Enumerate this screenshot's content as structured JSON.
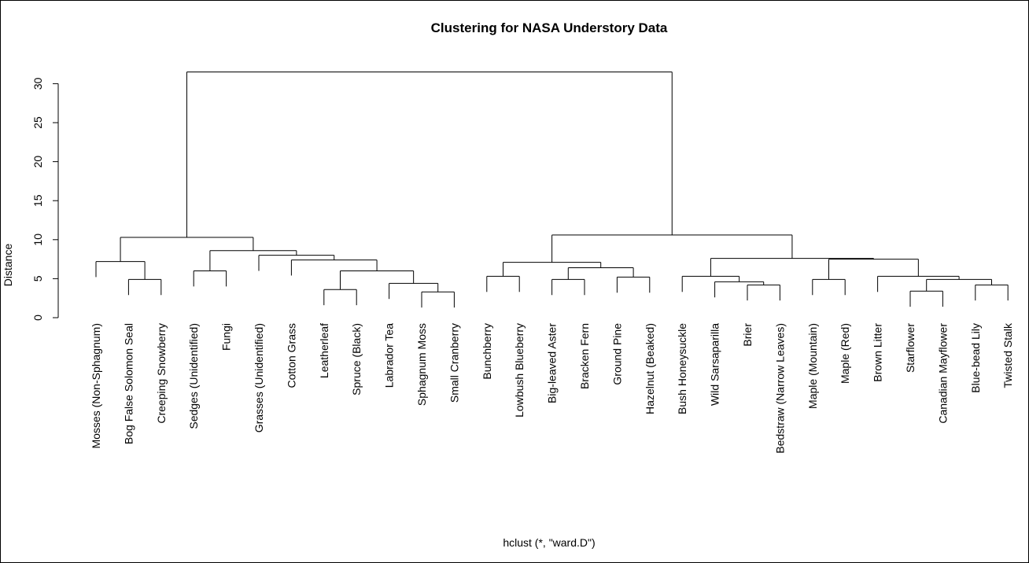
{
  "chart_data": {
    "type": "dendrogram",
    "title": "Clustering for NASA Understory Data",
    "ylabel": "Distance",
    "xlabel": "hclust (*, \"ward.D\")",
    "ylim": [
      0,
      33
    ],
    "yticks": [
      0,
      5,
      10,
      15,
      20,
      25,
      30
    ],
    "grid": false,
    "leaves": [
      "Mosses (Non-Sphagnum)",
      "Bog False Solomon Seal",
      "Creeping Snowberry",
      "Sedges (Unidentified)",
      "Fungi",
      "Grasses (Unidentified)",
      "Cotton Grass",
      "Leatherleaf",
      "Spruce (Black)",
      "Labrador Tea",
      "Sphagnum Moss",
      "Small Cranberry",
      "Bunchberry",
      "Lowbush Blueberry",
      "Big-leaved Aster",
      "Bracken Fern",
      "Ground Pine",
      "Hazelnut (Beaked)",
      "Bush Honeysuckle",
      "Wild Sarsaparilla",
      "Brier",
      "Bedstraw (Narrow Leaves)",
      "Maple (Mountain)",
      "Maple (Red)",
      "Brown Litter",
      "Starflower",
      "Canadian Mayflower",
      "Blue-bead Lily",
      "Twisted Stalk"
    ],
    "merges": [
      {
        "id": "a",
        "left": 1,
        "right": 2,
        "height": 4.9
      },
      {
        "id": "b",
        "left": 0,
        "right": "a",
        "height": 7.2
      },
      {
        "id": "c",
        "left": 3,
        "right": 4,
        "height": 6.0
      },
      {
        "id": "d",
        "left": 7,
        "right": 8,
        "height": 3.6
      },
      {
        "id": "e",
        "left": 10,
        "right": 11,
        "height": 3.3
      },
      {
        "id": "f",
        "left": 9,
        "right": "e",
        "height": 4.4
      },
      {
        "id": "g",
        "left": "d",
        "right": "f",
        "height": 6.0
      },
      {
        "id": "h",
        "left": 6,
        "right": "g",
        "height": 7.4
      },
      {
        "id": "i",
        "left": 5,
        "right": "h",
        "height": 8.0
      },
      {
        "id": "j",
        "left": "c",
        "right": "i",
        "height": 8.6
      },
      {
        "id": "k",
        "left": "b",
        "right": "j",
        "height": 10.3
      },
      {
        "id": "l",
        "left": 12,
        "right": 13,
        "height": 5.3
      },
      {
        "id": "m",
        "left": 14,
        "right": 15,
        "height": 4.9
      },
      {
        "id": "n",
        "left": 16,
        "right": 17,
        "height": 5.2
      },
      {
        "id": "o",
        "left": "m",
        "right": "n",
        "height": 6.4
      },
      {
        "id": "p",
        "left": "l",
        "right": "o",
        "height": 7.1
      },
      {
        "id": "q",
        "left": 20,
        "right": 21,
        "height": 4.2
      },
      {
        "id": "r",
        "left": 19,
        "right": "q",
        "height": 4.6
      },
      {
        "id": "s",
        "left": 18,
        "right": "r",
        "height": 5.3
      },
      {
        "id": "t",
        "left": 22,
        "right": 23,
        "height": 4.9
      },
      {
        "id": "u",
        "left": 25,
        "right": 26,
        "height": 3.4
      },
      {
        "id": "v",
        "left": 27,
        "right": 28,
        "height": 4.2
      },
      {
        "id": "w",
        "left": "u",
        "right": "v",
        "height": 4.9
      },
      {
        "id": "x",
        "left": 24,
        "right": "w",
        "height": 5.3
      },
      {
        "id": "y",
        "left": "t",
        "right": "x",
        "height": 7.5
      },
      {
        "id": "z",
        "left": "s",
        "right": "y",
        "height": 7.6
      },
      {
        "id": "aa",
        "left": "p",
        "right": "z",
        "height": 10.6
      },
      {
        "id": "root",
        "left": "k",
        "right": "aa",
        "height": 31.5
      }
    ]
  }
}
